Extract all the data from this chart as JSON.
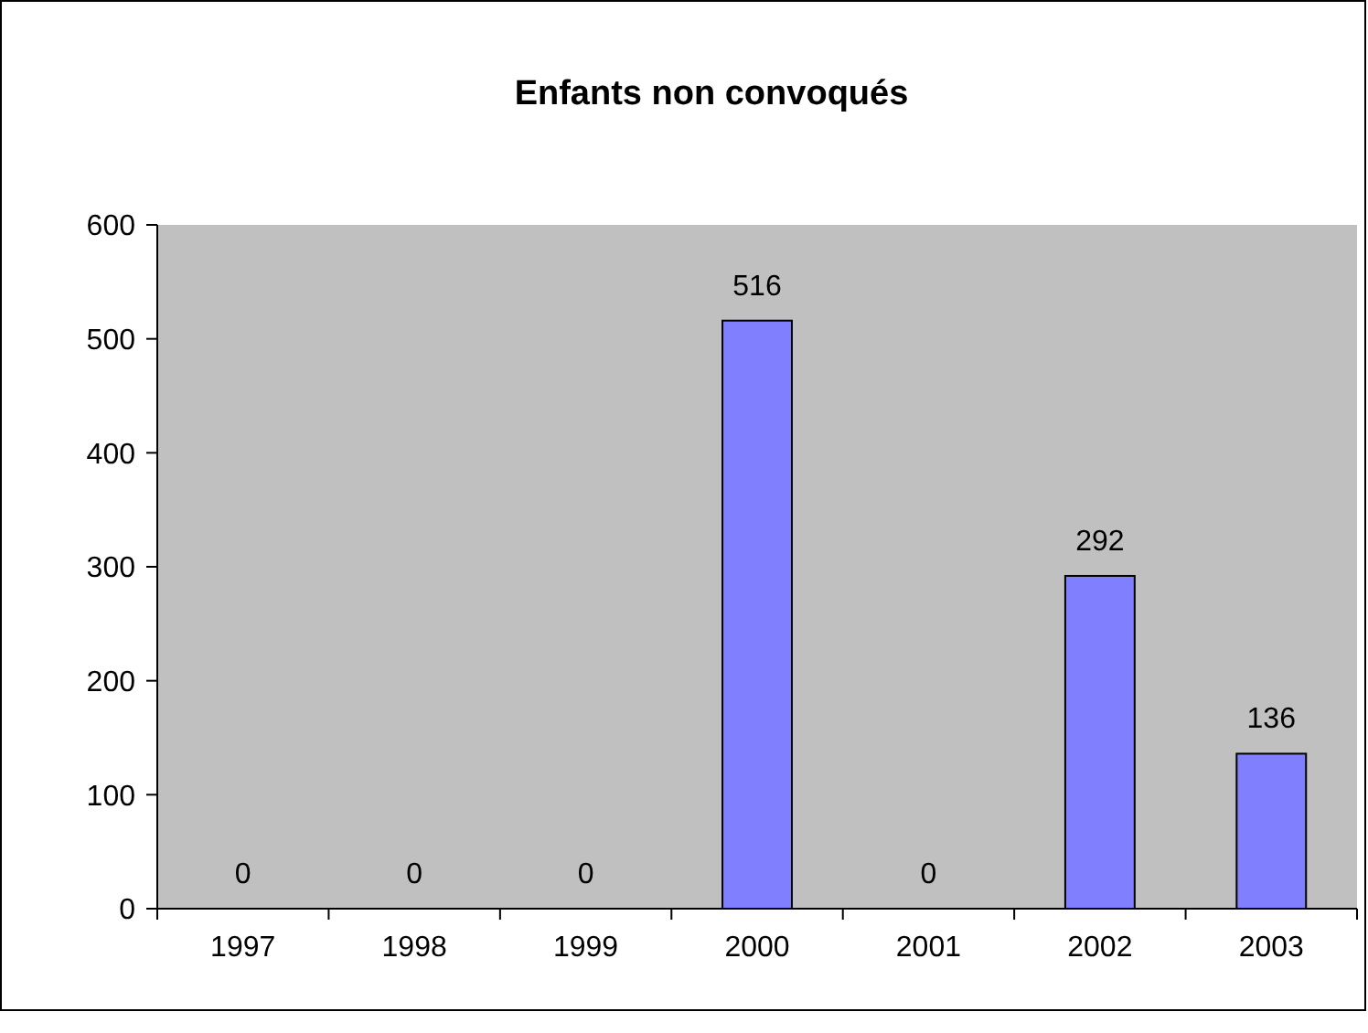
{
  "chart_data": {
    "type": "bar",
    "title": "Enfants non convoqués",
    "categories": [
      "1997",
      "1998",
      "1999",
      "2000",
      "2001",
      "2002",
      "2003"
    ],
    "values": [
      0,
      0,
      0,
      516,
      0,
      292,
      136
    ],
    "color": "#8080ff",
    "ylim": [
      0,
      600
    ],
    "yticks": [
      0,
      100,
      200,
      300,
      400,
      500,
      600
    ],
    "grid": false,
    "data_labels": true
  }
}
